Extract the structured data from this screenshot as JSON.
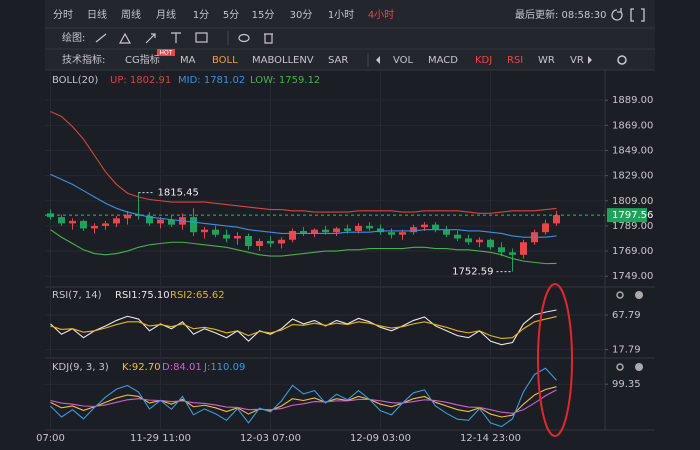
{
  "toolbar": {
    "periods": [
      "分时",
      "日线",
      "周线",
      "月线",
      "1分",
      "5分",
      "15分",
      "30分",
      "1小时",
      "4小时"
    ],
    "active_period": "4小时",
    "last_update": "最后更新: 08:58:30",
    "draw_label": "绘图:",
    "indicator_label": "技术指标:",
    "hot_badge": "HOT",
    "main_indicators": [
      "CG指标",
      "MA",
      "BOLL",
      "MABOLL",
      "ENV",
      "SAR"
    ],
    "active_main": "BOLL",
    "sub_indicators": [
      "VOL",
      "MACD",
      "KDJ",
      "RSI",
      "WR",
      "VR"
    ],
    "active_sub": [
      "KDJ",
      "RSI"
    ]
  },
  "chart_data": [
    {
      "type": "candlestick",
      "title": "BOLL(20)",
      "header_items": [
        "UP: 1802.91",
        "MID: 1781.02",
        "LOW: 1759.12"
      ],
      "categories": [
        "07:00",
        null,
        null,
        null,
        null,
        null,
        null,
        null,
        null,
        null,
        "11-29 11:00",
        null,
        null,
        null,
        null,
        null,
        null,
        null,
        null,
        null,
        "12-03 07:00",
        null,
        null,
        null,
        null,
        null,
        null,
        null,
        null,
        null,
        "12-09 03:00",
        null,
        null,
        null,
        null,
        null,
        null,
        null,
        null,
        null,
        "12-14 23:00",
        null,
        null,
        null,
        null,
        null,
        null
      ],
      "open": [
        1799,
        1796,
        1791,
        1793,
        1787,
        1789,
        1791,
        1795,
        1798,
        1797,
        1791,
        1794,
        1790,
        1796,
        1784,
        1786,
        1782,
        1779,
        1781,
        1773,
        1777,
        1775,
        1778,
        1785,
        1783,
        1786,
        1784,
        1787,
        1785,
        1789,
        1787,
        1784,
        1782,
        1784,
        1788,
        1790,
        1786,
        1782,
        1779,
        1776,
        1778,
        1772,
        1768,
        1766,
        1776,
        1784,
        1791
      ],
      "high": [
        1802,
        1798,
        1795,
        1794,
        1791,
        1793,
        1797,
        1801,
        1815.45,
        1800,
        1796,
        1797,
        1799,
        1803,
        1788,
        1789,
        1786,
        1784,
        1783,
        1779,
        1781,
        1780,
        1787,
        1788,
        1787,
        1789,
        1788,
        1790,
        1791,
        1792,
        1790,
        1787,
        1786,
        1790,
        1792,
        1792,
        1789,
        1785,
        1782,
        1780,
        1779,
        1776,
        1771,
        1778,
        1786,
        1794,
        1801
      ],
      "low": [
        1794,
        1789,
        1786,
        1785,
        1783,
        1786,
        1788,
        1790,
        1794,
        1789,
        1787,
        1788,
        1786,
        1781,
        1779,
        1780,
        1776,
        1774,
        1770,
        1769,
        1772,
        1771,
        1776,
        1781,
        1780,
        1782,
        1781,
        1783,
        1783,
        1785,
        1782,
        1779,
        1778,
        1782,
        1785,
        1784,
        1780,
        1777,
        1774,
        1772,
        1770,
        1765,
        1752.59,
        1763,
        1774,
        1782,
        1789
      ],
      "close": [
        1796,
        1791,
        1793,
        1787,
        1789,
        1791,
        1795,
        1798,
        1797,
        1791,
        1794,
        1790,
        1796,
        1784,
        1786,
        1782,
        1779,
        1781,
        1773,
        1777,
        1775,
        1778,
        1785,
        1783,
        1786,
        1784,
        1787,
        1785,
        1789,
        1787,
        1784,
        1782,
        1784,
        1788,
        1790,
        1786,
        1782,
        1779,
        1776,
        1778,
        1772,
        1768,
        1766,
        1776,
        1784,
        1791,
        1797.56
      ],
      "up_color": "#e5474b",
      "down_color": "#1fa35a",
      "series": [
        {
          "name": "UP",
          "color": "#d9453f",
          "values": [
            1880,
            1876,
            1868,
            1858,
            1845,
            1832,
            1822,
            1815,
            1812,
            1810,
            1809,
            1808,
            1808,
            1808,
            1808,
            1807,
            1806,
            1805,
            1804,
            1803,
            1802,
            1802,
            1801,
            1801,
            1800,
            1800,
            1800,
            1800,
            1801,
            1801,
            1801,
            1801,
            1800,
            1800,
            1801,
            1801,
            1801,
            1801,
            1800,
            1799,
            1799,
            1800,
            1801,
            1801,
            1801,
            1802,
            1802.91
          ]
        },
        {
          "name": "MID",
          "color": "#3d8fe0",
          "values": [
            1830,
            1826,
            1822,
            1817,
            1812,
            1807,
            1803,
            1800,
            1798,
            1796,
            1795,
            1794,
            1793,
            1792,
            1791,
            1790,
            1789,
            1788,
            1786,
            1785,
            1784,
            1783,
            1783,
            1783,
            1783,
            1783,
            1783,
            1784,
            1784,
            1784,
            1785,
            1785,
            1785,
            1785,
            1786,
            1786,
            1786,
            1786,
            1785,
            1785,
            1784,
            1783,
            1781,
            1780,
            1780,
            1780,
            1781.02
          ]
        },
        {
          "name": "LOW",
          "color": "#4caf50",
          "values": [
            1786,
            1780,
            1775,
            1770,
            1767,
            1766,
            1767,
            1769,
            1772,
            1774,
            1775,
            1776,
            1776,
            1775,
            1774,
            1773,
            1772,
            1770,
            1768,
            1766,
            1765,
            1765,
            1766,
            1767,
            1768,
            1769,
            1769,
            1770,
            1770,
            1771,
            1771,
            1771,
            1771,
            1772,
            1772,
            1771,
            1771,
            1770,
            1770,
            1769,
            1768,
            1766,
            1763,
            1761,
            1760,
            1759,
            1759.12
          ]
        }
      ],
      "ylim": [
        1742,
        1913
      ],
      "yticks": [
        {
          "value": 1889,
          "label": "1889.00"
        },
        {
          "value": 1869,
          "label": "1869.00"
        },
        {
          "value": 1849,
          "label": "1849.00"
        },
        {
          "value": 1829,
          "label": "1829.00"
        },
        {
          "value": 1809,
          "label": "1809.00"
        },
        {
          "value": 1789,
          "label": "1789.00"
        },
        {
          "value": 1769,
          "label": "1769.00"
        },
        {
          "value": 1749,
          "label": "1749.00"
        }
      ],
      "grid": true
    },
    {
      "type": "line",
      "title": "RSI(7, 14)",
      "header_items": [
        "RSI1:75.10",
        "RSI2:65.62"
      ],
      "series": [
        {
          "name": "RSI1",
          "color": "#e8e8e8",
          "values": [
            55,
            40,
            48,
            35,
            45,
            52,
            60,
            66,
            62,
            45,
            55,
            48,
            58,
            40,
            48,
            42,
            35,
            45,
            30,
            45,
            40,
            48,
            62,
            55,
            60,
            52,
            60,
            55,
            63,
            58,
            50,
            45,
            52,
            60,
            65,
            52,
            45,
            38,
            35,
            45,
            30,
            25,
            28,
            55,
            68,
            72,
            75.1
          ]
        },
        {
          "name": "RSI2",
          "color": "#e6b422",
          "values": [
            52,
            47,
            48,
            43,
            45,
            49,
            54,
            58,
            58,
            52,
            54,
            51,
            55,
            48,
            50,
            47,
            42,
            45,
            38,
            44,
            42,
            46,
            54,
            53,
            56,
            53,
            56,
            54,
            58,
            56,
            52,
            49,
            51,
            55,
            58,
            54,
            50,
            45,
            42,
            45,
            38,
            34,
            35,
            48,
            58,
            62,
            65.62
          ]
        }
      ],
      "ylim": [
        10,
        104
      ],
      "yticks": [
        67.79,
        17.79
      ]
    },
    {
      "type": "line",
      "title": "KDJ(9, 3, 3)",
      "header_items": [
        "K:92.70",
        "D:84.01",
        "J:110.09"
      ],
      "series": [
        {
          "name": "K",
          "color": "#f0c040",
          "values": [
            50,
            35,
            40,
            28,
            38,
            50,
            62,
            70,
            66,
            48,
            55,
            45,
            58,
            38,
            42,
            35,
            25,
            35,
            18,
            32,
            28,
            40,
            60,
            55,
            62,
            50,
            60,
            55,
            66,
            58,
            45,
            38,
            48,
            60,
            66,
            50,
            40,
            30,
            25,
            35,
            18,
            10,
            15,
            45,
            70,
            85,
            92.7
          ]
        },
        {
          "name": "D",
          "color": "#d060d0",
          "values": [
            55,
            48,
            45,
            40,
            39,
            43,
            50,
            57,
            60,
            56,
            55,
            52,
            54,
            49,
            47,
            43,
            37,
            36,
            30,
            31,
            30,
            33,
            42,
            46,
            52,
            51,
            54,
            54,
            58,
            58,
            54,
            49,
            48,
            52,
            57,
            55,
            50,
            43,
            37,
            36,
            30,
            23,
            20,
            30,
            48,
            68,
            84.01
          ]
        },
        {
          "name": "J",
          "color": "#3a9bdc",
          "values": [
            40,
            10,
            30,
            5,
            36,
            64,
            86,
            96,
            78,
            32,
            55,
            31,
            66,
            16,
            32,
            19,
            1,
            33,
            -6,
            34,
            24,
            54,
            96,
            73,
            82,
            48,
            72,
            57,
            82,
            58,
            27,
            16,
            48,
            76,
            84,
            40,
            20,
            4,
            1,
            33,
            -6,
            -16,
            5,
            79,
            126,
            143,
            110.09
          ]
        }
      ],
      "ylim": [
        -20,
        160
      ],
      "yticks": [
        99.35
      ]
    }
  ]
}
